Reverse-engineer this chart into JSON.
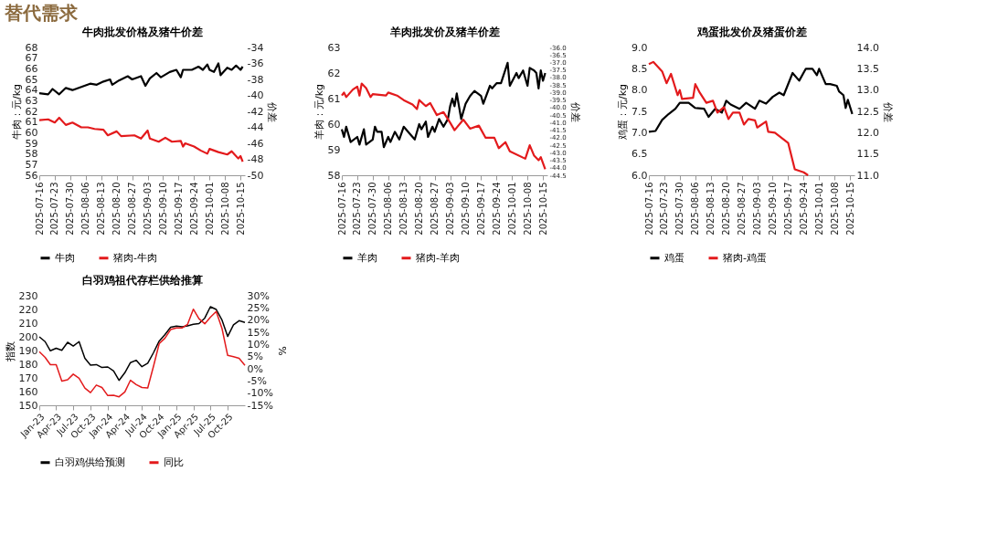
{
  "chart_data": [
    {
      "type": "line",
      "title": "牛肉批发价格及猪牛价差",
      "ylabel": "牛肉：元/kg",
      "y2label": "价差",
      "legend": "bottom",
      "annotations": [
        "替代需求"
      ],
      "xlim": [
        "2025-07-16",
        "2025-10-17"
      ],
      "xticks": [
        "2025-07-16",
        "2025-07-23",
        "2025-07-30",
        "2025-08-06",
        "2025-08-13",
        "2025-08-20",
        "2025-08-27",
        "2025-09-03",
        "2025-09-10",
        "2025-09-17",
        "2025-09-24",
        "2025-10-01",
        "2025-10-08",
        "2025-10-15"
      ],
      "ylim": [
        56,
        68
      ],
      "yticks": [
        56,
        57,
        58,
        59,
        60,
        61,
        62,
        63,
        64,
        65,
        66,
        67,
        68
      ],
      "y2lim": [
        -50,
        -34
      ],
      "y2ticks": [
        -50,
        -48,
        -46,
        -44,
        -42,
        -40,
        -38,
        -36,
        -34
      ],
      "series": [
        {
          "name": "牛肉",
          "color": "#000000",
          "x": [
            "2025-07-16",
            "2025-07-20",
            "2025-07-22",
            "2025-07-25",
            "2025-07-28",
            "2025-07-31",
            "2025-08-04",
            "2025-08-08",
            "2025-08-11",
            "2025-08-14",
            "2025-08-17",
            "2025-08-18",
            "2025-08-21",
            "2025-08-25",
            "2025-08-27",
            "2025-08-31",
            "2025-09-02",
            "2025-09-04",
            "2025-09-07",
            "2025-09-09",
            "2025-09-13",
            "2025-09-16",
            "2025-09-18",
            "2025-09-19",
            "2025-09-23",
            "2025-09-26",
            "2025-09-28",
            "2025-09-30",
            "2025-10-01",
            "2025-10-03",
            "2025-10-05",
            "2025-10-06",
            "2025-10-09",
            "2025-10-11",
            "2025-10-13",
            "2025-10-15",
            "2025-10-16"
          ],
          "values": [
            63.7,
            63.6,
            64.1,
            63.6,
            64.2,
            64.0,
            64.3,
            64.6,
            64.5,
            64.8,
            65.0,
            64.5,
            64.9,
            65.3,
            65.0,
            65.3,
            64.4,
            65.1,
            65.6,
            65.2,
            65.7,
            65.9,
            65.2,
            65.9,
            65.9,
            66.2,
            65.9,
            66.4,
            65.9,
            65.7,
            66.5,
            65.4,
            66.1,
            65.9,
            66.3,
            65.9,
            66.2
          ]
        },
        {
          "name": "猪肉-牛肉",
          "color": "#e31a1c",
          "axis": "y2",
          "x": [
            "2025-07-16",
            "2025-07-20",
            "2025-07-23",
            "2025-07-25",
            "2025-07-28",
            "2025-07-31",
            "2025-08-04",
            "2025-08-07",
            "2025-08-10",
            "2025-08-14",
            "2025-08-16",
            "2025-08-20",
            "2025-08-22",
            "2025-08-28",
            "2025-08-31",
            "2025-09-03",
            "2025-09-04",
            "2025-09-08",
            "2025-09-11",
            "2025-09-14",
            "2025-09-18",
            "2025-09-19",
            "2025-09-20",
            "2025-09-24",
            "2025-09-27",
            "2025-09-30",
            "2025-10-01",
            "2025-10-05",
            "2025-10-09",
            "2025-10-11",
            "2025-10-14",
            "2025-10-15",
            "2025-10-16"
          ],
          "values": [
            -43.1,
            -43.0,
            -43.4,
            -42.8,
            -43.7,
            -43.4,
            -44.0,
            -44.0,
            -44.2,
            -44.3,
            -45.0,
            -44.5,
            -45.1,
            -45.0,
            -45.4,
            -44.4,
            -45.4,
            -45.8,
            -45.3,
            -45.8,
            -45.7,
            -46.4,
            -46.0,
            -46.4,
            -46.9,
            -47.3,
            -46.7,
            -47.1,
            -47.4,
            -47.0,
            -47.9,
            -47.6,
            -48.3
          ]
        }
      ]
    },
    {
      "type": "line",
      "title": "羊肉批发价及猪羊价差",
      "ylabel": "羊肉：元/kg",
      "y2label": "价差",
      "legend": "bottom",
      "xlim": [
        "2025-07-16",
        "2025-10-17"
      ],
      "xticks": [
        "2025-07-16",
        "2025-07-23",
        "2025-07-30",
        "2025-08-06",
        "2025-08-13",
        "2025-08-20",
        "2025-08-27",
        "2025-09-03",
        "2025-09-10",
        "2025-09-17",
        "2025-09-24",
        "2025-10-01",
        "2025-10-08",
        "2025-10-15"
      ],
      "ylim": [
        58,
        63
      ],
      "yticks": [
        58,
        59,
        60,
        61,
        62,
        63
      ],
      "y2lim": [
        -44.5,
        -36.0
      ],
      "y2ticks": [
        -44.5,
        {
          "value": -44,
          "label": "-44.0"
        },
        -43.5,
        {
          "value": -43,
          "label": "-43.0"
        },
        -42.5,
        {
          "value": -42,
          "label": "-42.0"
        },
        -41.5,
        {
          "value": -41,
          "label": "-41.0"
        },
        -40.5,
        {
          "value": -40,
          "label": "-40.0"
        },
        -39.5,
        {
          "value": -39,
          "label": "-39.0"
        },
        -38.5,
        {
          "value": -38,
          "label": "-38.0"
        },
        -37.5,
        {
          "value": -37,
          "label": "-37.0"
        },
        -36.5,
        {
          "value": -36,
          "label": "-36.0"
        }
      ],
      "series": [
        {
          "name": "羊肉",
          "color": "#000000",
          "x": [
            "2025-07-16",
            "2025-07-17",
            "2025-07-18",
            "2025-07-20",
            "2025-07-23",
            "2025-07-24",
            "2025-07-26",
            "2025-07-27",
            "2025-07-30",
            "2025-07-31",
            "2025-08-01",
            "2025-08-03",
            "2025-08-04",
            "2025-08-06",
            "2025-08-07",
            "2025-08-09",
            "2025-08-11",
            "2025-08-13",
            "2025-08-16",
            "2025-08-18",
            "2025-08-20",
            "2025-08-21",
            "2025-08-23",
            "2025-08-24",
            "2025-08-26",
            "2025-08-27",
            "2025-08-29",
            "2025-08-31",
            "2025-09-02",
            "2025-09-03",
            "2025-09-04",
            "2025-09-05",
            "2025-09-06",
            "2025-09-08",
            "2025-09-10",
            "2025-09-12",
            "2025-09-14",
            "2025-09-17",
            "2025-09-18",
            "2025-09-21",
            "2025-09-22",
            "2025-09-24",
            "2025-09-26",
            "2025-09-29",
            "2025-09-30",
            "2025-10-03",
            "2025-10-04",
            "2025-10-06",
            "2025-10-08",
            "2025-10-09",
            "2025-10-11",
            "2025-10-12",
            "2025-10-13",
            "2025-10-14",
            "2025-10-15",
            "2025-10-16"
          ],
          "values": [
            59.8,
            59.5,
            59.9,
            59.3,
            59.5,
            59.2,
            59.8,
            59.2,
            59.4,
            59.9,
            59.7,
            59.7,
            59.1,
            59.5,
            59.3,
            59.7,
            59.4,
            59.9,
            59.6,
            59.4,
            60.0,
            59.8,
            60.1,
            59.5,
            59.9,
            59.7,
            60.2,
            59.9,
            60.2,
            60.7,
            61.0,
            60.7,
            61.2,
            60.2,
            60.8,
            61.1,
            61.3,
            61.1,
            60.8,
            61.5,
            61.4,
            61.6,
            61.6,
            62.4,
            61.5,
            62.0,
            61.8,
            62.1,
            61.5,
            62.2,
            62.1,
            62.0,
            61.4,
            62.1,
            61.7,
            62.0
          ]
        },
        {
          "name": "猪肉-羊肉",
          "color": "#e31a1c",
          "axis": "y2",
          "x": [
            "2025-07-16",
            "2025-07-17",
            "2025-07-18",
            "2025-07-21",
            "2025-07-23",
            "2025-07-24",
            "2025-07-25",
            "2025-07-27",
            "2025-07-29",
            "2025-07-30",
            "2025-08-05",
            "2025-08-06",
            "2025-08-10",
            "2025-08-13",
            "2025-08-17",
            "2025-08-19",
            "2025-08-20",
            "2025-08-23",
            "2025-08-25",
            "2025-08-28",
            "2025-08-31",
            "2025-09-03",
            "2025-09-05",
            "2025-09-09",
            "2025-09-12",
            "2025-09-16",
            "2025-09-19",
            "2025-09-23",
            "2025-09-25",
            "2025-09-28",
            "2025-09-30",
            "2025-10-07",
            "2025-10-09",
            "2025-10-11",
            "2025-10-13",
            "2025-10-14",
            "2025-10-16"
          ],
          "values": [
            -39.2,
            -39.0,
            -39.3,
            -38.8,
            -38.6,
            -39.2,
            -38.4,
            -38.7,
            -39.3,
            -39.1,
            -39.2,
            -39.0,
            -39.2,
            -39.5,
            -39.8,
            -40.1,
            -39.5,
            -39.9,
            -39.7,
            -40.5,
            -40.3,
            -41.0,
            -41.5,
            -40.8,
            -41.4,
            -41.2,
            -42.0,
            -42.0,
            -42.7,
            -42.3,
            -42.9,
            -43.4,
            -42.5,
            -43.2,
            -43.5,
            -43.3,
            -44.1
          ]
        }
      ]
    },
    {
      "type": "line",
      "title": "鸡蛋批发价及猪蛋价差",
      "ylabel": "鸡蛋：元/kg",
      "y2label": "价差",
      "legend": "bottom",
      "xlim": [
        "2025-07-16",
        "2025-10-17"
      ],
      "xticks": [
        "2025-07-16",
        "2025-07-23",
        "2025-07-30",
        "2025-08-06",
        "2025-08-13",
        "2025-08-20",
        "2025-08-27",
        "2025-09-03",
        "2025-09-10",
        "2025-09-17",
        "2025-09-24",
        "2025-10-01",
        "2025-10-08",
        "2025-10-15"
      ],
      "ylim": [
        6,
        9
      ],
      "yticks": [
        {
          "value": 6,
          "label": "6.0"
        },
        6.5,
        {
          "value": 7,
          "label": "7.0"
        },
        7.5,
        {
          "value": 8,
          "label": "8.0"
        },
        8.5,
        {
          "value": 9,
          "label": "9.0"
        }
      ],
      "y2lim": [
        11,
        14
      ],
      "y2ticks": [
        {
          "value": 11,
          "label": "11.0"
        },
        11.5,
        {
          "value": 12,
          "label": "12.0"
        },
        12.5,
        {
          "value": 13,
          "label": "13.0"
        },
        13.5,
        {
          "value": 14,
          "label": "14.0"
        }
      ],
      "series": [
        {
          "name": "鸡蛋",
          "color": "#000000",
          "x": [
            "2025-07-16",
            "2025-07-19",
            "2025-07-22",
            "2025-07-25",
            "2025-07-28",
            "2025-07-30",
            "2025-08-03",
            "2025-08-06",
            "2025-08-10",
            "2025-08-12",
            "2025-08-15",
            "2025-08-18",
            "2025-08-20",
            "2025-08-22",
            "2025-08-26",
            "2025-08-29",
            "2025-09-02",
            "2025-09-04",
            "2025-09-07",
            "2025-09-10",
            "2025-09-13",
            "2025-09-15",
            "2025-09-19",
            "2025-09-22",
            "2025-09-25",
            "2025-09-28",
            "2025-09-30",
            "2025-10-01",
            "2025-10-04",
            "2025-10-06",
            "2025-10-09",
            "2025-10-10",
            "2025-10-12",
            "2025-10-13",
            "2025-10-14",
            "2025-10-16"
          ],
          "values": [
            7.02,
            7.04,
            7.3,
            7.44,
            7.56,
            7.7,
            7.7,
            7.58,
            7.56,
            7.37,
            7.56,
            7.47,
            7.75,
            7.66,
            7.56,
            7.7,
            7.56,
            7.75,
            7.68,
            7.84,
            7.94,
            7.88,
            8.4,
            8.22,
            8.5,
            8.5,
            8.35,
            8.5,
            8.14,
            8.14,
            8.1,
            7.97,
            7.88,
            7.58,
            7.77,
            7.44
          ]
        },
        {
          "name": "猪肉-鸡蛋",
          "color": "#e31a1c",
          "axis": "y2",
          "x": [
            "2025-07-16",
            "2025-07-18",
            "2025-07-22",
            "2025-07-24",
            "2025-07-26",
            "2025-07-29",
            "2025-07-30",
            "2025-07-31",
            "2025-08-05",
            "2025-08-06",
            "2025-08-08",
            "2025-08-11",
            "2025-08-14",
            "2025-08-16",
            "2025-08-19",
            "2025-08-21",
            "2025-08-23",
            "2025-08-26",
            "2025-08-28",
            "2025-08-30",
            "2025-09-02",
            "2025-09-03",
            "2025-09-07",
            "2025-09-08",
            "2025-09-11",
            "2025-09-17",
            "2025-09-20",
            "2025-09-24",
            "2025-09-26"
          ],
          "values": [
            13.61,
            13.66,
            13.44,
            13.16,
            13.38,
            12.88,
            13.0,
            12.79,
            12.82,
            13.14,
            12.94,
            12.7,
            12.75,
            12.47,
            12.6,
            12.32,
            12.47,
            12.47,
            12.19,
            12.32,
            12.29,
            12.12,
            12.26,
            12.02,
            12.0,
            11.76,
            11.14,
            11.07,
            11.0
          ]
        }
      ]
    },
    {
      "type": "line",
      "title": "白羽鸡祖代存栏供给推算",
      "ylabel": "指数",
      "y2label": "%",
      "legend": "bottom",
      "xlim": [
        "2023-01",
        "2026-01"
      ],
      "xticks": [
        {
          "value": "2023-01",
          "label": "Jan-23"
        },
        {
          "value": "2023-04",
          "label": "Apr-23"
        },
        {
          "value": "2023-07",
          "label": "Jul-23"
        },
        {
          "value": "2023-10",
          "label": "Oct-23"
        },
        {
          "value": "2024-01",
          "label": "Jan-24"
        },
        {
          "value": "2024-04",
          "label": "Apr-24"
        },
        {
          "value": "2024-07",
          "label": "Jul-24"
        },
        {
          "value": "2024-10",
          "label": "Oct-24"
        },
        {
          "value": "2025-01",
          "label": "Jan-25"
        },
        {
          "value": "2025-04",
          "label": "Apr-25"
        },
        {
          "value": "2025-07",
          "label": "Jul-25"
        },
        {
          "value": "2025-10",
          "label": "Oct-25"
        }
      ],
      "ylim": [
        150,
        230
      ],
      "yticks": [
        150,
        160,
        170,
        180,
        190,
        200,
        210,
        220,
        230
      ],
      "y2lim": [
        -15,
        30
      ],
      "y2ticks": [
        {
          "value": -15,
          "label": "-15%"
        },
        {
          "value": -10,
          "label": "-10%"
        },
        {
          "value": -5,
          "label": "-5%"
        },
        {
          "value": 0,
          "label": "0%"
        },
        {
          "value": 5,
          "label": "5%"
        },
        {
          "value": 10,
          "label": "10%"
        },
        {
          "value": 15,
          "label": "15%"
        },
        {
          "value": 20,
          "label": "20%"
        },
        {
          "value": 25,
          "label": "25%"
        },
        {
          "value": 30,
          "label": "30%"
        }
      ],
      "x": [
        "2023-01",
        "2023-02",
        "2023-03",
        "2023-04",
        "2023-05",
        "2023-06",
        "2023-07",
        "2023-08",
        "2023-09",
        "2023-10",
        "2023-11",
        "2023-12",
        "2024-01",
        "2024-02",
        "2024-03",
        "2024-04",
        "2024-05",
        "2024-06",
        "2024-07",
        "2024-08",
        "2024-09",
        "2024-10",
        "2024-11",
        "2024-12",
        "2025-01",
        "2025-02",
        "2025-03",
        "2025-04",
        "2025-05",
        "2025-06",
        "2025-07",
        "2025-08",
        "2025-09",
        "2025-10",
        "2025-11",
        "2025-12",
        "2026-01"
      ],
      "series": [
        {
          "name": "白羽鸡供给预测",
          "color": "#000000",
          "values": [
            200.0,
            196.5,
            189.8,
            191.7,
            190.2,
            196.0,
            193.3,
            196.5,
            184.3,
            179.3,
            179.7,
            177.6,
            178.0,
            175.1,
            168.2,
            173.8,
            181.2,
            182.9,
            178.2,
            180.7,
            188.5,
            196.9,
            201.7,
            207.0,
            207.8,
            207.4,
            208.0,
            209.1,
            209.7,
            213.7,
            222.0,
            220.0,
            212.2,
            200.3,
            208.7,
            211.8,
            210.5
          ]
        },
        {
          "name": "同比",
          "color": "#e31a1c",
          "axis": "y2",
          "values": [
            7.0,
            4.7,
            1.7,
            1.7,
            -5.1,
            -4.5,
            -2.2,
            -3.9,
            -7.9,
            -9.8,
            -6.7,
            -7.7,
            -11.0,
            -10.9,
            -11.5,
            -9.5,
            -4.7,
            -6.5,
            -7.7,
            -7.9,
            1.1,
            10.3,
            12.6,
            16.1,
            16.8,
            16.8,
            18.2,
            24.5,
            20.6,
            18.5,
            21.2,
            23.5,
            16.5,
            5.5,
            5.0,
            4.3,
            1.4
          ]
        }
      ]
    }
  ]
}
